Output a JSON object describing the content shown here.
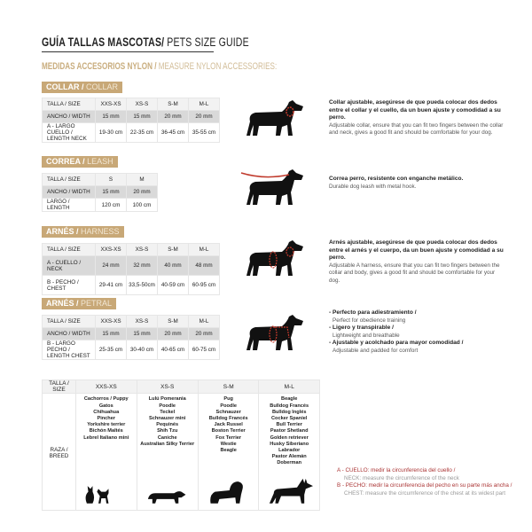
{
  "title": {
    "es": "GUÍA TALLAS MASCOTAS/",
    "en": " PETS SIZE GUIDE"
  },
  "subtitle": {
    "es": "MEDIDAS ACCESORIOS NYLON /",
    "en": " MEASURE NYLON ACCESSORIES:"
  },
  "collar": {
    "tag_es": "COLLAR /",
    "tag_en": " COLLAR",
    "header": [
      "TALLA / SIZE",
      "XXS-XS",
      "XS-S",
      "S-M",
      "M-L"
    ],
    "rows": [
      [
        "ANCHO / WIDTH",
        "15 mm",
        "15 mm",
        "20 mm",
        "20 mm"
      ],
      [
        "A - LARGO CUELLO / LENGTH NECK",
        "19-30 cm",
        "22-35 cm",
        "36-45 cm",
        "35-55 cm"
      ]
    ],
    "desc_es": "Collar ajustable, asegúrese de que pueda colocar dos dedos entre el collar y el cuello, da un buen ajuste y comodidad a su perro.",
    "desc_en": "Adjustable collar, ensure that you can fit two fingers between the collar and neck, gives a good fit and should be comfortable for your dog."
  },
  "leash": {
    "tag_es": "CORREA /",
    "tag_en": " LEASH",
    "header": [
      "TALLA / SIZE",
      "S",
      "M"
    ],
    "rows": [
      [
        "ANCHO / WIDTH",
        "15 mm",
        "20 mm"
      ],
      [
        "LARGO / LENGTH",
        "120 cm",
        "100 cm"
      ]
    ],
    "desc_es": "Correa perro, resistente con enganche metálico.",
    "desc_en": "Durable dog leash with metal hook."
  },
  "harness": {
    "tag_es": "ARNÉS /",
    "tag_en": " HARNESS",
    "header": [
      "TALLA / SIZE",
      "XXS-XS",
      "XS-S",
      "S-M",
      "M-L"
    ],
    "rows": [
      [
        "A - CUELLO / NECK",
        "24 mm",
        "32 mm",
        "40 mm",
        "48 mm"
      ],
      [
        "B - PECHO / CHEST",
        "29-41 cm",
        "33,5-50cm",
        "40-59 cm",
        "60-95 cm"
      ]
    ],
    "desc_es": "Arnés ajustable, asegúrese de que pueda colocar dos dedos entre el arnés y el cuerpo, da un buen ajuste y comodidad a su perro.",
    "desc_en": "Adjustable A harness, ensure that you can fit two fingers between the collar and body, gives a good fit and should be comfortable for your dog."
  },
  "petral": {
    "tag_es": "ARNÉS /",
    "tag_en": " PETRAL",
    "header": [
      "TALLA / SIZE",
      "XXS-XS",
      "XS-S",
      "S-M",
      "M-L"
    ],
    "rows": [
      [
        "ANCHO / WIDTH",
        "15 mm",
        "15 mm",
        "20 mm",
        "20 mm"
      ],
      [
        "B - LARGO PECHO / LENGTH CHEST",
        "25-35 cm",
        "30-40 cm",
        "40-65 cm",
        "60-75 cm"
      ]
    ],
    "bullets": [
      {
        "es": "- Perfecto para adiestramiento /",
        "en": "Perfect for obedience training"
      },
      {
        "es": "- Ligero y transpirable /",
        "en": "Lightweight and breathable"
      },
      {
        "es": "- Ajustable y acolchado para mayor comodidad /",
        "en": "Adjustable and padded for comfort"
      }
    ]
  },
  "breeds": {
    "header": [
      "TALLA /  SIZE",
      "XXS-XS",
      "XS-S",
      "S-M",
      "M-L"
    ],
    "row_label": "RAZA / BREED",
    "lists": [
      "Cachorros / Puppy\nGatos\nChihuahua\nPincher\nYorkshire terrier\nBichón Maltés\nLebrel Italiano mini",
      "Lulú Pomerania\nPoodle\nTeckel\nSchnauzer mini\nPequinés\nShih Tzu\nCaniche\nAustralian Silky Terrier",
      "Pug\nPoodle\nSchnauzer\nBulldog Francés\nJack Russel\nBoston Terrier\nFox Terrier\nWestie\nBeagle",
      "Beagle\nBulldog Francés\nBulldog Inglés\nCocker Spaniel\nBull Terrier\nPastor Shetland\nGolden retriever\nHusky Siberiano\nLabrador\nPastor Alemán\nDoberman"
    ]
  },
  "legend": [
    {
      "es": "A - CUELLO: medir la circunferencia del cuello /",
      "en": "NECK: measure the circumference of the neck"
    },
    {
      "es": "B - PECHO: medir la circunferencia del pecho en su parte más ancha /",
      "en": "CHEST: measure the circumference of the chest at its widest part"
    }
  ],
  "colors": {
    "gold": "#c8a877",
    "accent_red": "#c0392b"
  }
}
